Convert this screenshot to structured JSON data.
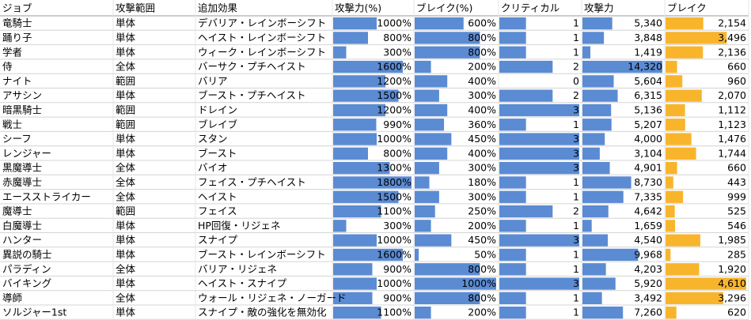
{
  "table": {
    "columns": [
      {
        "name": "ジョブ"
      },
      {
        "name": "攻撃範囲"
      },
      {
        "name": "追加効果"
      },
      {
        "name": "攻撃力(%)",
        "bar_color": "#5b8bd3"
      },
      {
        "name": "ブレイク(%)",
        "bar_color": "#5b8bd3"
      },
      {
        "name": "クリティカル",
        "bar_color": "#5b8bd3"
      },
      {
        "name": "攻撃力",
        "bar_color": "#5b8bd3"
      },
      {
        "name": "ブレイク",
        "bar_color": "#f8b52c"
      }
    ],
    "rows": [
      [
        "竜騎士",
        "単体",
        "デバリア・レインボーシフト",
        {
          "value": 1000,
          "label": "1000%"
        },
        {
          "value": 600,
          "label": "600%"
        },
        1,
        {
          "value": 5340,
          "label": "5,340"
        },
        {
          "value": 2154,
          "label": "2,154"
        }
      ],
      [
        "踊り子",
        "単体",
        "ヘイスト・レインボーシフト",
        {
          "value": 800,
          "label": "800%"
        },
        {
          "value": 800,
          "label": "800%"
        },
        1,
        {
          "value": 3848,
          "label": "3,848"
        },
        {
          "value": 3496,
          "label": "3,496"
        }
      ],
      [
        "学者",
        "単体",
        "ウィーク・レインボーシフト",
        {
          "value": 300,
          "label": "300%"
        },
        {
          "value": 800,
          "label": "800%"
        },
        1,
        {
          "value": 1419,
          "label": "1,419"
        },
        {
          "value": 2136,
          "label": "2,136"
        }
      ],
      [
        "侍",
        "全体",
        "バーサク・プチヘイスト",
        {
          "value": 1600,
          "label": "1600%"
        },
        {
          "value": 200,
          "label": "200%"
        },
        2,
        {
          "value": 14320,
          "label": "14,320"
        },
        660
      ],
      [
        "ナイト",
        "範囲",
        "バリア",
        {
          "value": 1200,
          "label": "1200%"
        },
        {
          "value": 400,
          "label": "400%"
        },
        0,
        {
          "value": 5604,
          "label": "5,604"
        },
        960
      ],
      [
        "アサシン",
        "単体",
        "ブースト・プチヘイスト",
        {
          "value": 1500,
          "label": "1500%"
        },
        {
          "value": 300,
          "label": "300%"
        },
        2,
        {
          "value": 6315,
          "label": "6,315"
        },
        {
          "value": 2070,
          "label": "2,070"
        }
      ],
      [
        "暗黒騎士",
        "範囲",
        "ドレイン",
        {
          "value": 1200,
          "label": "1200%"
        },
        {
          "value": 400,
          "label": "400%"
        },
        3,
        {
          "value": 5136,
          "label": "5,136"
        },
        {
          "value": 1112,
          "label": "1,112"
        }
      ],
      [
        "戦士",
        "範囲",
        "ブレイブ",
        {
          "value": 990,
          "label": "990%"
        },
        {
          "value": 360,
          "label": "360%"
        },
        1,
        {
          "value": 5207,
          "label": "5,207"
        },
        {
          "value": 1123,
          "label": "1,123"
        }
      ],
      [
        "シーフ",
        "単体",
        "スタン",
        {
          "value": 1000,
          "label": "1000%"
        },
        {
          "value": 450,
          "label": "450%"
        },
        3,
        {
          "value": 4000,
          "label": "4,000"
        },
        {
          "value": 1476,
          "label": "1,476"
        }
      ],
      [
        "レンジャー",
        "単体",
        "ブースト",
        {
          "value": 800,
          "label": "800%"
        },
        {
          "value": 400,
          "label": "400%"
        },
        3,
        {
          "value": 3104,
          "label": "3,104"
        },
        {
          "value": 1744,
          "label": "1,744"
        }
      ],
      [
        "黒魔導士",
        "全体",
        "バイオ",
        {
          "value": 1300,
          "label": "1300%"
        },
        {
          "value": 300,
          "label": "300%"
        },
        3,
        {
          "value": 4901,
          "label": "4,901"
        },
        660
      ],
      [
        "赤魔導士",
        "全体",
        "フェイス・プチヘイスト",
        {
          "value": 1800,
          "label": "1800%"
        },
        {
          "value": 180,
          "label": "180%"
        },
        1,
        {
          "value": 8730,
          "label": "8,730"
        },
        443
      ],
      [
        "エースストライカー",
        "全体",
        "ヘイスト",
        {
          "value": 1500,
          "label": "1500%"
        },
        {
          "value": 300,
          "label": "300%"
        },
        1,
        {
          "value": 7335,
          "label": "7,335"
        },
        999
      ],
      [
        "魔導士",
        "範囲",
        "フェイス",
        {
          "value": 1100,
          "label": "1100%"
        },
        {
          "value": 250,
          "label": "250%"
        },
        2,
        {
          "value": 4642,
          "label": "4,642"
        },
        525
      ],
      [
        "白魔導士",
        "単体",
        "HP回復・リジェネ",
        {
          "value": 300,
          "label": "300%"
        },
        {
          "value": 200,
          "label": "200%"
        },
        1,
        {
          "value": 1659,
          "label": "1,659"
        },
        546
      ],
      [
        "ハンター",
        "単体",
        "スナイプ",
        {
          "value": 1000,
          "label": "1000%"
        },
        {
          "value": 450,
          "label": "450%"
        },
        3,
        {
          "value": 4540,
          "label": "4,540"
        },
        {
          "value": 1985,
          "label": "1,985"
        }
      ],
      [
        "異説の騎士",
        "単体",
        "ブースト・レインボーシフト",
        {
          "value": 1600,
          "label": "1600%"
        },
        {
          "value": 50,
          "label": "50%"
        },
        1,
        {
          "value": 9968,
          "label": "9,968"
        },
        285
      ],
      [
        "パラディン",
        "全体",
        "バリア・リジェネ",
        {
          "value": 900,
          "label": "900%"
        },
        {
          "value": 800,
          "label": "800%"
        },
        1,
        {
          "value": 4203,
          "label": "4,203"
        },
        {
          "value": 1920,
          "label": "1,920"
        }
      ],
      [
        "バイキング",
        "単体",
        "ヘイスト・スナイプ",
        {
          "value": 1000,
          "label": "1000%"
        },
        {
          "value": 1000,
          "label": "1000%"
        },
        3,
        {
          "value": 5920,
          "label": "5,920"
        },
        {
          "value": 4610,
          "label": "4,610"
        }
      ],
      [
        "導師",
        "全体",
        "ウォール・リジェネ・ノーガード",
        {
          "value": 900,
          "label": "900%"
        },
        {
          "value": 800,
          "label": "800%"
        },
        1,
        {
          "value": 3492,
          "label": "3,492"
        },
        {
          "value": 3296,
          "label": "3,296"
        }
      ],
      [
        "ソルジャー1st",
        "単体",
        "スナイプ・敵の強化を無効化",
        {
          "value": 1100,
          "label": "1100%"
        },
        {
          "value": 200,
          "label": "200%"
        },
        1,
        {
          "value": 7260,
          "label": "7,260"
        },
        620
      ]
    ]
  }
}
